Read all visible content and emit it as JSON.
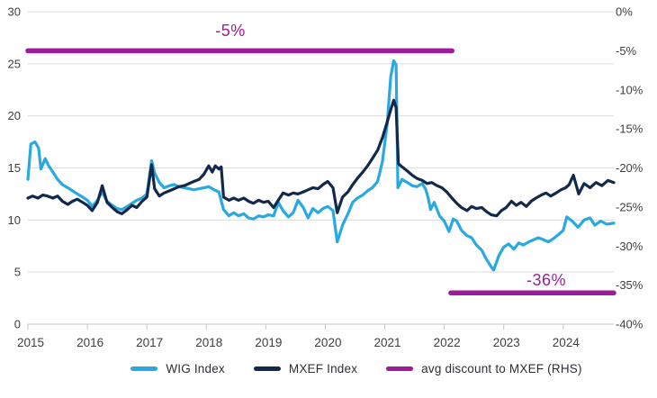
{
  "chart_data": {
    "type": "line",
    "title": "",
    "grid": "horizontal",
    "legend_position": "bottom",
    "x_axis": {
      "min": 2015.0,
      "max": 2024.85,
      "ticks": [
        2015,
        2016,
        2017,
        2018,
        2019,
        2020,
        2021,
        2022,
        2023,
        2024
      ],
      "tick_labels": [
        "2015",
        "2016",
        "2017",
        "2018",
        "2019",
        "2020",
        "2021",
        "2022",
        "2023",
        "2024"
      ]
    },
    "left_axis": {
      "min": 0,
      "max": 30,
      "ticks": [
        0,
        5,
        10,
        15,
        20,
        25,
        30
      ],
      "tick_labels": [
        "0",
        "5",
        "10",
        "15",
        "20",
        "25",
        "30"
      ]
    },
    "right_axis": {
      "min": -40,
      "max": 0,
      "ticks": [
        0,
        -5,
        -10,
        -15,
        -20,
        -25,
        -30,
        -35,
        -40
      ],
      "tick_labels": [
        "0%",
        "-5%",
        "-10%",
        "-15%",
        "-20%",
        "-25%",
        "-30%",
        "-35%",
        "-40%"
      ]
    },
    "series": [
      {
        "name": "WIG Index",
        "axis": "left",
        "color": "#29a9e1",
        "points": [
          [
            2015.0,
            13.9
          ],
          [
            2015.05,
            17.3
          ],
          [
            2015.12,
            17.5
          ],
          [
            2015.18,
            16.9
          ],
          [
            2015.22,
            14.9
          ],
          [
            2015.29,
            15.9
          ],
          [
            2015.35,
            15.2
          ],
          [
            2015.42,
            14.6
          ],
          [
            2015.5,
            13.9
          ],
          [
            2015.58,
            13.4
          ],
          [
            2015.67,
            13.1
          ],
          [
            2015.75,
            12.8
          ],
          [
            2015.83,
            12.5
          ],
          [
            2015.92,
            12.2
          ],
          [
            2016.0,
            11.9
          ],
          [
            2016.08,
            11.3
          ],
          [
            2016.17,
            11.9
          ],
          [
            2016.25,
            12.7
          ],
          [
            2016.33,
            11.8
          ],
          [
            2016.42,
            11.4
          ],
          [
            2016.5,
            11.1
          ],
          [
            2016.58,
            11.0
          ],
          [
            2016.67,
            11.3
          ],
          [
            2016.75,
            11.6
          ],
          [
            2016.83,
            11.9
          ],
          [
            2016.92,
            12.1
          ],
          [
            2017.0,
            12.5
          ],
          [
            2017.08,
            15.7
          ],
          [
            2017.13,
            14.5
          ],
          [
            2017.21,
            13.6
          ],
          [
            2017.29,
            13.1
          ],
          [
            2017.38,
            13.3
          ],
          [
            2017.46,
            13.4
          ],
          [
            2017.54,
            13.2
          ],
          [
            2017.63,
            13.1
          ],
          [
            2017.71,
            13.0
          ],
          [
            2017.79,
            12.9
          ],
          [
            2017.88,
            13.0
          ],
          [
            2017.96,
            13.1
          ],
          [
            2018.04,
            13.2
          ],
          [
            2018.13,
            12.9
          ],
          [
            2018.21,
            12.7
          ],
          [
            2018.29,
            11.0
          ],
          [
            2018.38,
            10.4
          ],
          [
            2018.46,
            10.7
          ],
          [
            2018.54,
            10.4
          ],
          [
            2018.63,
            10.6
          ],
          [
            2018.71,
            10.2
          ],
          [
            2018.79,
            10.1
          ],
          [
            2018.88,
            10.4
          ],
          [
            2018.96,
            10.3
          ],
          [
            2019.04,
            10.5
          ],
          [
            2019.13,
            10.4
          ],
          [
            2019.21,
            11.7
          ],
          [
            2019.29,
            10.9
          ],
          [
            2019.38,
            10.3
          ],
          [
            2019.46,
            10.7
          ],
          [
            2019.54,
            11.9
          ],
          [
            2019.63,
            11.2
          ],
          [
            2019.71,
            10.2
          ],
          [
            2019.79,
            11.1
          ],
          [
            2019.88,
            10.7
          ],
          [
            2019.96,
            11.1
          ],
          [
            2020.04,
            11.3
          ],
          [
            2020.13,
            10.9
          ],
          [
            2020.2,
            7.9
          ],
          [
            2020.29,
            9.5
          ],
          [
            2020.38,
            10.6
          ],
          [
            2020.46,
            11.7
          ],
          [
            2020.54,
            12.1
          ],
          [
            2020.63,
            12.4
          ],
          [
            2020.71,
            12.8
          ],
          [
            2020.79,
            13.1
          ],
          [
            2020.88,
            13.7
          ],
          [
            2020.96,
            15.6
          ],
          [
            2021.04,
            19.2
          ],
          [
            2021.1,
            23.8
          ],
          [
            2021.15,
            25.3
          ],
          [
            2021.19,
            24.9
          ],
          [
            2021.22,
            13.1
          ],
          [
            2021.29,
            13.9
          ],
          [
            2021.38,
            13.6
          ],
          [
            2021.46,
            13.3
          ],
          [
            2021.54,
            13.2
          ],
          [
            2021.63,
            13.5
          ],
          [
            2021.69,
            12.9
          ],
          [
            2021.73,
            12.1
          ],
          [
            2021.77,
            11.0
          ],
          [
            2021.83,
            11.7
          ],
          [
            2021.92,
            10.4
          ],
          [
            2022.0,
            9.9
          ],
          [
            2022.08,
            8.9
          ],
          [
            2022.15,
            10.1
          ],
          [
            2022.21,
            9.9
          ],
          [
            2022.29,
            9.0
          ],
          [
            2022.38,
            8.5
          ],
          [
            2022.46,
            8.3
          ],
          [
            2022.54,
            7.6
          ],
          [
            2022.63,
            7.1
          ],
          [
            2022.71,
            6.2
          ],
          [
            2022.79,
            5.5
          ],
          [
            2022.83,
            5.2
          ],
          [
            2022.92,
            6.6
          ],
          [
            2023.0,
            7.4
          ],
          [
            2023.08,
            7.7
          ],
          [
            2023.17,
            7.2
          ],
          [
            2023.25,
            7.8
          ],
          [
            2023.33,
            7.6
          ],
          [
            2023.42,
            7.9
          ],
          [
            2023.5,
            8.1
          ],
          [
            2023.58,
            8.3
          ],
          [
            2023.67,
            8.1
          ],
          [
            2023.75,
            7.9
          ],
          [
            2023.83,
            8.2
          ],
          [
            2023.92,
            8.6
          ],
          [
            2024.0,
            9.0
          ],
          [
            2024.06,
            10.3
          ],
          [
            2024.15,
            9.9
          ],
          [
            2024.25,
            9.3
          ],
          [
            2024.35,
            10.0
          ],
          [
            2024.45,
            10.2
          ],
          [
            2024.53,
            9.5
          ],
          [
            2024.63,
            9.9
          ],
          [
            2024.73,
            9.6
          ],
          [
            2024.85,
            9.7
          ]
        ]
      },
      {
        "name": "MXEF Index",
        "axis": "left",
        "color": "#13294b",
        "points": [
          [
            2015.0,
            12.1
          ],
          [
            2015.08,
            12.3
          ],
          [
            2015.17,
            12.1
          ],
          [
            2015.25,
            12.4
          ],
          [
            2015.33,
            12.3
          ],
          [
            2015.42,
            12.1
          ],
          [
            2015.5,
            12.3
          ],
          [
            2015.58,
            11.8
          ],
          [
            2015.67,
            11.5
          ],
          [
            2015.75,
            11.8
          ],
          [
            2015.83,
            12.0
          ],
          [
            2015.92,
            11.7
          ],
          [
            2016.0,
            11.4
          ],
          [
            2016.08,
            10.9
          ],
          [
            2016.17,
            11.7
          ],
          [
            2016.25,
            13.3
          ],
          [
            2016.33,
            11.7
          ],
          [
            2016.42,
            11.2
          ],
          [
            2016.5,
            10.8
          ],
          [
            2016.58,
            10.6
          ],
          [
            2016.67,
            11.0
          ],
          [
            2016.75,
            11.4
          ],
          [
            2016.83,
            11.2
          ],
          [
            2016.92,
            11.8
          ],
          [
            2017.0,
            12.2
          ],
          [
            2017.08,
            15.3
          ],
          [
            2017.13,
            13.0
          ],
          [
            2017.21,
            12.3
          ],
          [
            2017.29,
            12.6
          ],
          [
            2017.38,
            12.8
          ],
          [
            2017.46,
            13.0
          ],
          [
            2017.54,
            13.2
          ],
          [
            2017.63,
            13.3
          ],
          [
            2017.71,
            13.5
          ],
          [
            2017.79,
            13.7
          ],
          [
            2017.88,
            13.9
          ],
          [
            2017.96,
            14.4
          ],
          [
            2018.04,
            15.2
          ],
          [
            2018.1,
            14.6
          ],
          [
            2018.15,
            15.2
          ],
          [
            2018.21,
            14.9
          ],
          [
            2018.25,
            15.1
          ],
          [
            2018.29,
            12.2
          ],
          [
            2018.38,
            11.9
          ],
          [
            2018.46,
            12.1
          ],
          [
            2018.54,
            11.9
          ],
          [
            2018.63,
            12.1
          ],
          [
            2018.71,
            11.8
          ],
          [
            2018.79,
            11.6
          ],
          [
            2018.88,
            11.9
          ],
          [
            2018.96,
            11.7
          ],
          [
            2019.04,
            11.8
          ],
          [
            2019.13,
            11.2
          ],
          [
            2019.21,
            11.9
          ],
          [
            2019.29,
            12.6
          ],
          [
            2019.38,
            12.4
          ],
          [
            2019.46,
            12.6
          ],
          [
            2019.54,
            12.5
          ],
          [
            2019.63,
            12.7
          ],
          [
            2019.71,
            12.9
          ],
          [
            2019.79,
            13.1
          ],
          [
            2019.88,
            13.0
          ],
          [
            2019.96,
            13.4
          ],
          [
            2020.04,
            13.7
          ],
          [
            2020.13,
            13.1
          ],
          [
            2020.2,
            10.7
          ],
          [
            2020.29,
            12.2
          ],
          [
            2020.38,
            12.7
          ],
          [
            2020.46,
            13.4
          ],
          [
            2020.54,
            14.0
          ],
          [
            2020.63,
            14.6
          ],
          [
            2020.71,
            15.2
          ],
          [
            2020.79,
            15.9
          ],
          [
            2020.88,
            16.7
          ],
          [
            2020.96,
            17.9
          ],
          [
            2021.04,
            19.4
          ],
          [
            2021.1,
            20.6
          ],
          [
            2021.15,
            21.5
          ],
          [
            2021.19,
            20.8
          ],
          [
            2021.23,
            15.4
          ],
          [
            2021.29,
            15.1
          ],
          [
            2021.38,
            14.7
          ],
          [
            2021.46,
            14.3
          ],
          [
            2021.54,
            14.0
          ],
          [
            2021.63,
            13.8
          ],
          [
            2021.71,
            13.5
          ],
          [
            2021.79,
            13.6
          ],
          [
            2021.88,
            13.3
          ],
          [
            2021.96,
            13.1
          ],
          [
            2022.04,
            12.7
          ],
          [
            2022.13,
            12.1
          ],
          [
            2022.21,
            11.6
          ],
          [
            2022.29,
            11.2
          ],
          [
            2022.38,
            10.9
          ],
          [
            2022.46,
            11.3
          ],
          [
            2022.54,
            11.1
          ],
          [
            2022.63,
            11.2
          ],
          [
            2022.71,
            10.8
          ],
          [
            2022.79,
            10.5
          ],
          [
            2022.88,
            10.4
          ],
          [
            2022.96,
            10.9
          ],
          [
            2023.04,
            11.2
          ],
          [
            2023.13,
            11.8
          ],
          [
            2023.21,
            11.4
          ],
          [
            2023.29,
            11.7
          ],
          [
            2023.38,
            11.3
          ],
          [
            2023.46,
            11.8
          ],
          [
            2023.54,
            12.1
          ],
          [
            2023.63,
            12.4
          ],
          [
            2023.71,
            12.6
          ],
          [
            2023.79,
            12.3
          ],
          [
            2023.88,
            12.6
          ],
          [
            2023.96,
            12.9
          ],
          [
            2024.04,
            13.1
          ],
          [
            2024.1,
            13.4
          ],
          [
            2024.17,
            14.3
          ],
          [
            2024.26,
            12.5
          ],
          [
            2024.35,
            13.5
          ],
          [
            2024.45,
            13.1
          ],
          [
            2024.55,
            13.6
          ],
          [
            2024.65,
            13.3
          ],
          [
            2024.75,
            13.8
          ],
          [
            2024.85,
            13.6
          ]
        ]
      },
      {
        "name": "avg discount to MXEF (RHS)",
        "axis": "right",
        "color": "#9c1c9c",
        "segments": [
          {
            "x1": 2015.0,
            "x2": 2022.13,
            "value_pct": -5,
            "label": "-5%"
          },
          {
            "x1": 2022.11,
            "x2": 2024.85,
            "value_pct": -36,
            "label": "-36%"
          }
        ]
      }
    ],
    "legend": [
      "WIG Index",
      "MXEF Index",
      "avg discount to MXEF (RHS)"
    ]
  },
  "colors": {
    "wig_blue": "#29a9e1",
    "mxef_navy": "#13294b",
    "discount_magenta": "#9c1c9c",
    "gridline": "#dcdcdc",
    "axis_line": "#c6c6c6",
    "tick_text": "#3e3e3e"
  }
}
